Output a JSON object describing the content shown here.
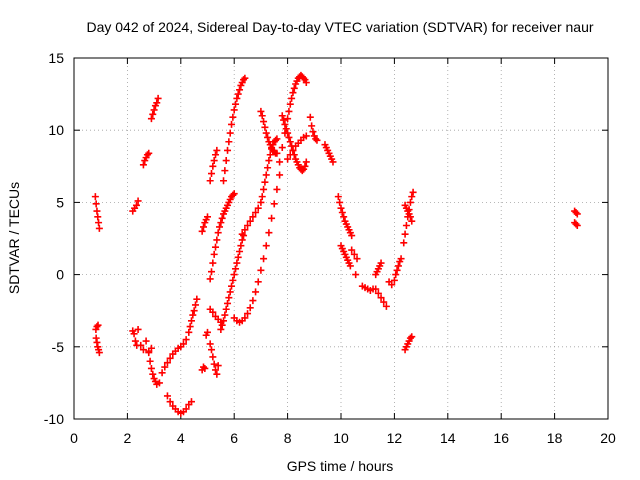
{
  "chart_data": {
    "type": "scatter",
    "title": "Day 042 of 2024, Sidereal Day-to-day VTEC variation (SDTVAR) for receiver naur",
    "xlabel": "GPS time / hours",
    "ylabel": "SDTVAR / TECUs",
    "xlim": [
      0,
      20
    ],
    "ylim": [
      -10,
      15
    ],
    "xticks": [
      0,
      2,
      4,
      6,
      8,
      10,
      12,
      14,
      16,
      18,
      20
    ],
    "yticks": [
      -10,
      -5,
      0,
      5,
      10,
      15
    ],
    "grid": true,
    "marker": "+",
    "color": "#ff0000",
    "series": [
      {
        "name": "s1",
        "x": [
          0.8,
          0.83,
          0.86,
          0.89,
          0.92,
          0.95
        ],
        "y": [
          5.4,
          4.9,
          4.4,
          4.0,
          3.6,
          3.2
        ]
      },
      {
        "name": "s2",
        "x": [
          0.82,
          0.86,
          0.9
        ],
        "y": [
          -3.8,
          -3.6,
          -3.5
        ]
      },
      {
        "name": "s3",
        "x": [
          0.83,
          0.86,
          0.89,
          0.92,
          0.95
        ],
        "y": [
          -4.4,
          -4.7,
          -5.0,
          -5.2,
          -5.4
        ]
      },
      {
        "name": "s4",
        "x": [
          2.2,
          2.27,
          2.34,
          2.4
        ],
        "y": [
          4.4,
          4.6,
          4.8,
          5.1
        ]
      },
      {
        "name": "s5",
        "x": [
          2.2,
          2.25,
          2.3,
          2.35,
          2.4
        ],
        "y": [
          -3.9,
          -4.1,
          -4.6,
          -4.9,
          -3.8
        ]
      },
      {
        "name": "s6",
        "x": [
          2.6,
          2.65,
          2.7,
          2.75,
          2.8
        ],
        "y": [
          7.6,
          7.9,
          8.1,
          8.3,
          8.4
        ]
      },
      {
        "name": "s7",
        "x": [
          2.5,
          2.6,
          2.7,
          2.8,
          2.9
        ],
        "y": [
          -4.9,
          -5.2,
          -4.6,
          -5.3,
          -5.1
        ]
      },
      {
        "name": "s8",
        "x": [
          2.9,
          2.95,
          3.0,
          3.05,
          3.1,
          3.15
        ],
        "y": [
          10.8,
          11.1,
          11.4,
          11.7,
          11.9,
          12.2
        ]
      },
      {
        "name": "s9",
        "x": [
          2.8,
          2.85,
          2.9,
          2.95,
          3.0,
          3.05,
          3.1,
          3.2,
          3.3,
          3.4,
          3.5,
          3.6,
          3.7,
          3.8,
          3.9,
          4.0,
          4.1,
          4.2,
          4.3,
          4.35,
          4.4,
          4.45,
          4.5,
          4.55,
          4.6
        ],
        "y": [
          -5.4,
          -6.0,
          -6.5,
          -6.9,
          -7.2,
          -7.4,
          -7.6,
          -7.5,
          -6.8,
          -6.4,
          -6.1,
          -5.8,
          -5.5,
          -5.3,
          -5.1,
          -5.0,
          -4.8,
          -4.5,
          -4.0,
          -3.6,
          -3.2,
          -2.8,
          -2.5,
          -2.1,
          -1.7
        ]
      },
      {
        "name": "s10",
        "x": [
          3.5,
          3.6,
          3.7,
          3.8,
          3.9,
          4.0,
          4.1,
          4.2,
          4.3,
          4.4
        ],
        "y": [
          -8.4,
          -8.8,
          -9.1,
          -9.3,
          -9.5,
          -9.6,
          -9.5,
          -9.3,
          -9.0,
          -8.8
        ]
      },
      {
        "name": "s11",
        "x": [
          4.8,
          4.85,
          4.9,
          4.95,
          5.0
        ],
        "y": [
          3.0,
          3.3,
          3.6,
          3.8,
          4.0
        ]
      },
      {
        "name": "s12",
        "x": [
          4.8,
          4.85,
          4.9,
          4.95,
          5.0
        ],
        "y": [
          -6.6,
          -6.4,
          -6.5,
          -4.2,
          -4.0
        ]
      },
      {
        "name": "s13",
        "x": [
          5.1,
          5.15,
          5.2,
          5.25,
          5.3,
          5.35
        ],
        "y": [
          6.5,
          7.0,
          7.5,
          7.9,
          8.3,
          8.6
        ]
      },
      {
        "name": "s14",
        "x": [
          5.1,
          5.15,
          5.2,
          5.25,
          5.3,
          5.35,
          5.4,
          5.45,
          5.5,
          5.55,
          5.6,
          5.65,
          5.7,
          5.75,
          5.8,
          5.85,
          5.9,
          5.95,
          6.0
        ],
        "y": [
          -0.3,
          0.2,
          0.8,
          1.4,
          1.9,
          2.4,
          2.9,
          3.3,
          3.6,
          3.9,
          4.2,
          4.4,
          4.6,
          4.8,
          5.0,
          5.2,
          5.4,
          5.5,
          5.6
        ]
      },
      {
        "name": "s15",
        "x": [
          5.1,
          5.15,
          5.2,
          5.25,
          5.3,
          5.35,
          5.4
        ],
        "y": [
          -4.8,
          -5.2,
          -5.7,
          -6.2,
          -6.6,
          -6.9,
          -6.3
        ]
      },
      {
        "name": "s16",
        "x": [
          5.1,
          5.2,
          5.3,
          5.4,
          5.5
        ],
        "y": [
          -2.4,
          -2.6,
          -2.9,
          -3.1,
          -3.3
        ]
      },
      {
        "name": "s17",
        "x": [
          5.5,
          5.55,
          5.6,
          5.65,
          5.7,
          5.75,
          5.8,
          5.85,
          5.9,
          5.95,
          6.0,
          6.05,
          6.1,
          6.15,
          6.2,
          6.25,
          6.3,
          6.35
        ],
        "y": [
          -3.8,
          -3.5,
          -3.2,
          -2.8,
          -2.4,
          -2.0,
          -1.6,
          -1.2,
          -0.8,
          -0.4,
          0.0,
          0.4,
          0.8,
          1.2,
          1.6,
          2.0,
          2.4,
          2.7
        ]
      },
      {
        "name": "s18",
        "x": [
          5.6,
          5.65,
          5.7,
          5.75,
          5.8,
          5.85,
          5.9,
          5.95,
          6.0,
          6.05,
          6.1,
          6.15,
          6.2,
          6.25,
          6.3,
          6.35,
          6.4
        ],
        "y": [
          6.5,
          7.2,
          7.9,
          8.6,
          9.2,
          9.8,
          10.4,
          10.9,
          11.4,
          11.8,
          12.2,
          12.5,
          12.8,
          13.1,
          13.3,
          13.5,
          13.6
        ]
      },
      {
        "name": "s19",
        "x": [
          6.0,
          6.1,
          6.2,
          6.3,
          6.4,
          6.5,
          6.6,
          6.7,
          6.8,
          6.9,
          7.0,
          7.1,
          7.2,
          7.3,
          7.4,
          7.5,
          7.6,
          7.7
        ],
        "y": [
          -3.0,
          -3.2,
          -3.3,
          -3.2,
          -3.0,
          -2.7,
          -2.3,
          -1.8,
          -1.2,
          -0.5,
          0.3,
          1.1,
          2.0,
          2.9,
          3.9,
          4.9,
          5.9,
          6.9
        ]
      },
      {
        "name": "s20",
        "x": [
          6.3,
          6.4,
          6.5,
          6.6,
          6.7,
          6.8,
          6.9,
          7.0,
          7.05,
          7.1,
          7.15,
          7.2,
          7.25,
          7.3,
          7.35,
          7.4,
          7.45,
          7.5,
          7.55,
          7.6
        ],
        "y": [
          2.8,
          3.1,
          3.4,
          3.7,
          4.0,
          4.3,
          4.6,
          5.0,
          5.4,
          5.9,
          6.4,
          6.9,
          7.4,
          7.9,
          8.3,
          8.7,
          9.0,
          9.2,
          9.3,
          9.4
        ]
      },
      {
        "name": "s21",
        "x": [
          7.0,
          7.05,
          7.1,
          7.15,
          7.2,
          7.25,
          7.3,
          7.35,
          7.4,
          7.45,
          7.5,
          7.55,
          7.6
        ],
        "y": [
          11.3,
          11.0,
          10.6,
          10.2,
          9.8,
          9.5,
          9.2,
          9.0,
          8.8,
          8.6,
          8.5,
          8.4,
          8.4
        ]
      },
      {
        "name": "s22",
        "x": [
          7.7,
          7.8,
          7.9,
          8.0,
          8.05,
          8.1,
          8.15,
          8.2,
          8.25,
          8.3,
          8.35,
          8.4,
          8.45,
          8.5,
          8.55,
          8.6,
          8.65,
          8.7
        ],
        "y": [
          7.8,
          8.8,
          9.8,
          10.8,
          11.3,
          11.8,
          12.2,
          12.6,
          12.9,
          13.2,
          13.4,
          13.6,
          13.7,
          13.8,
          13.7,
          13.6,
          13.5,
          13.3
        ]
      },
      {
        "name": "s23",
        "x": [
          7.8,
          7.85,
          7.9,
          7.95,
          8.0,
          8.05,
          8.1,
          8.15,
          8.2,
          8.25,
          8.3,
          8.35,
          8.4,
          8.45,
          8.5,
          8.55,
          8.6,
          8.65,
          8.7
        ],
        "y": [
          11.0,
          10.7,
          10.4,
          10.1,
          9.8,
          9.5,
          9.2,
          8.9,
          8.6,
          8.3,
          8.0,
          7.8,
          7.6,
          7.4,
          7.3,
          7.2,
          7.3,
          7.5,
          7.8
        ]
      },
      {
        "name": "s24",
        "x": [
          8.0,
          8.1,
          8.2,
          8.3,
          8.4,
          8.5,
          8.6,
          8.7
        ],
        "y": [
          8.0,
          8.3,
          8.6,
          8.9,
          9.1,
          9.3,
          9.5,
          9.6
        ]
      },
      {
        "name": "s25",
        "x": [
          8.85,
          8.9,
          8.95,
          9.0,
          9.05,
          9.1
        ],
        "y": [
          10.9,
          10.3,
          9.9,
          9.6,
          9.4,
          9.3
        ]
      },
      {
        "name": "s26",
        "x": [
          9.4,
          9.45,
          9.5,
          9.55,
          9.6,
          9.65,
          9.7
        ],
        "y": [
          9.0,
          8.8,
          8.6,
          8.4,
          8.2,
          8.0,
          7.8
        ]
      },
      {
        "name": "s27",
        "x": [
          9.9,
          9.95,
          10.0,
          10.05,
          10.1,
          10.15,
          10.2,
          10.25,
          10.3,
          10.35,
          10.4
        ],
        "y": [
          5.4,
          5.0,
          4.6,
          4.3,
          4.0,
          3.7,
          3.5,
          3.3,
          3.1,
          2.9,
          2.7
        ]
      },
      {
        "name": "s28",
        "x": [
          10.0,
          10.05,
          10.1,
          10.15,
          10.2,
          10.25,
          10.3,
          10.35
        ],
        "y": [
          2.0,
          1.8,
          1.6,
          1.4,
          1.2,
          1.0,
          0.8,
          0.6
        ]
      },
      {
        "name": "s29",
        "x": [
          10.4,
          10.5,
          10.6
        ],
        "y": [
          1.7,
          1.4,
          1.1
        ]
      },
      {
        "name": "s30",
        "x": [
          10.55
        ],
        "y": [
          0.0
        ]
      },
      {
        "name": "s31",
        "x": [
          10.8,
          10.9,
          11.0,
          11.1,
          11.2
        ],
        "y": [
          -0.8,
          -0.9,
          -1.0,
          -1.1,
          -1.0
        ]
      },
      {
        "name": "s32",
        "x": [
          11.3,
          11.35,
          11.4,
          11.45,
          11.5
        ],
        "y": [
          0.0,
          0.2,
          0.4,
          0.6,
          0.8
        ]
      },
      {
        "name": "s33",
        "x": [
          11.3,
          11.4,
          11.5,
          11.6,
          11.7
        ],
        "y": [
          -1.0,
          -1.3,
          -1.6,
          -1.9,
          -2.2
        ]
      },
      {
        "name": "s34",
        "x": [
          11.8,
          11.9,
          12.0,
          12.05,
          12.1,
          12.15,
          12.2,
          12.25
        ],
        "y": [
          -0.5,
          -0.7,
          -0.4,
          0.0,
          0.3,
          0.6,
          0.9,
          1.1
        ]
      },
      {
        "name": "s35",
        "x": [
          12.35,
          12.4,
          12.45,
          12.5,
          12.55,
          12.6,
          12.65,
          12.7
        ],
        "y": [
          2.2,
          2.8,
          3.4,
          4.0,
          4.5,
          5.0,
          5.4,
          5.7
        ]
      },
      {
        "name": "s36",
        "x": [
          12.4,
          12.45,
          12.5,
          12.55,
          12.6,
          12.65
        ],
        "y": [
          4.8,
          4.6,
          4.4,
          4.2,
          4.0,
          3.7
        ]
      },
      {
        "name": "s37",
        "x": [
          12.4,
          12.45,
          12.5,
          12.55,
          12.6,
          12.65
        ],
        "y": [
          -5.2,
          -5.0,
          -4.8,
          -4.6,
          -4.4,
          -4.3
        ]
      },
      {
        "name": "s38",
        "x": [
          18.75,
          18.8,
          18.85
        ],
        "y": [
          4.4,
          4.3,
          4.2
        ]
      },
      {
        "name": "s39",
        "x": [
          18.75,
          18.8,
          18.85
        ],
        "y": [
          3.6,
          3.5,
          3.4
        ]
      }
    ]
  }
}
